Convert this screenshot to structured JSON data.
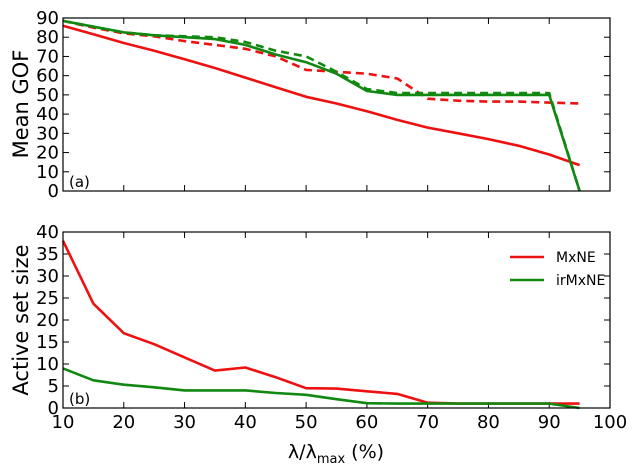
{
  "colors": {
    "mxne": "#ee1111",
    "irmxne": "#118811"
  },
  "chart_data": {
    "type": "line",
    "x": [
      10,
      15,
      20,
      25,
      30,
      35,
      40,
      45,
      50,
      55,
      60,
      65,
      70,
      75,
      80,
      85,
      90,
      95
    ],
    "xlabel": "λ/λ",
    "xlabel_sub": "max",
    "xlabel_suffix": " (%)",
    "xlim": [
      10,
      100
    ],
    "xticks": [
      10,
      20,
      30,
      40,
      50,
      60,
      70,
      80,
      90,
      100
    ],
    "legend": {
      "placement": "top-right",
      "entries": [
        "MxNE",
        "irMxNE"
      ]
    },
    "panels": [
      {
        "label": "(a)",
        "ylabel": "Mean GOF",
        "ylim": [
          0,
          90
        ],
        "yticks": [
          0,
          10,
          20,
          30,
          40,
          50,
          60,
          70,
          80,
          90
        ],
        "series": [
          {
            "key": "mxne",
            "style": "solid",
            "values": [
              86,
              81.5,
              77,
              73,
              68.5,
              64,
              59,
              54,
              49,
              45.5,
              41.5,
              37,
              33,
              30,
              27,
              23.5,
              19,
              13.5
            ]
          },
          {
            "key": "mxne",
            "style": "dashed",
            "values": [
              88.5,
              85,
              82,
              80.5,
              78,
              76,
              74,
              70,
              63,
              62,
              61,
              58.5,
              48,
              47,
              46.5,
              46.5,
              46,
              45.5
            ]
          },
          {
            "key": "irmxne",
            "style": "solid",
            "values": [
              88.5,
              85.5,
              82.5,
              81,
              80,
              79,
              76,
              71,
              67,
              61,
              52,
              50,
              50,
              50,
              50,
              50,
              50,
              0
            ]
          },
          {
            "key": "irmxne",
            "style": "dashed",
            "values": [
              88.5,
              85.5,
              82.5,
              81,
              80.5,
              80,
              77.5,
              73,
              70,
              62,
              53,
              51,
              51,
              51,
              51,
              51,
              51,
              0
            ]
          }
        ]
      },
      {
        "label": "(b)",
        "ylabel": "Active set size",
        "ylim": [
          0,
          40
        ],
        "yticks": [
          0,
          5,
          10,
          15,
          20,
          25,
          30,
          35,
          40
        ],
        "series": [
          {
            "key": "mxne",
            "style": "solid",
            "values": [
              38,
              23.7,
              17,
              14.5,
              11.5,
              8.5,
              9.2,
              7,
              4.5,
              4.4,
              3.8,
              3.2,
              1.2,
              1,
              1,
              1,
              1,
              1
            ]
          },
          {
            "key": "irmxne",
            "style": "solid",
            "values": [
              9,
              6.3,
              5.3,
              4.7,
              4,
              4,
              4,
              3.4,
              3,
              2,
              1.1,
              1,
              1,
              1,
              1,
              1,
              1,
              0
            ]
          }
        ]
      }
    ]
  }
}
